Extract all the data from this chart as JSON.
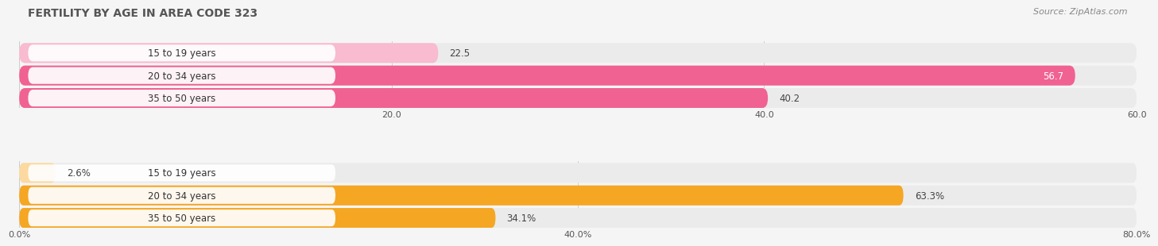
{
  "title": "FERTILITY BY AGE IN AREA CODE 323",
  "source": "Source: ZipAtlas.com",
  "title_fontsize": 10,
  "source_fontsize": 8,
  "bg_color": "#f5f5f5",
  "top_bars": {
    "labels": [
      "15 to 19 years",
      "20 to 34 years",
      "35 to 50 years"
    ],
    "values": [
      22.5,
      56.7,
      40.2
    ],
    "xlim": [
      0,
      60
    ],
    "xticks": [
      0,
      20.0,
      40.0,
      60.0
    ],
    "xtick_labels": [
      "",
      "20.0",
      "40.0",
      "60.0"
    ],
    "bar_color_strong": "#f06292",
    "bar_color_light": "#f8bbd0",
    "track_color": "#ebebeb",
    "value_inside_threshold": 0.85,
    "value_suffix": ""
  },
  "bottom_bars": {
    "labels": [
      "15 to 19 years",
      "20 to 34 years",
      "35 to 50 years"
    ],
    "values": [
      2.6,
      63.3,
      34.1
    ],
    "xlim": [
      0,
      80
    ],
    "xticks": [
      0,
      40.0,
      80.0
    ],
    "xtick_labels": [
      "0.0%",
      "40.0%",
      "80.0%"
    ],
    "bar_color_strong": "#f5a623",
    "bar_color_light": "#fcd9a0",
    "track_color": "#ebebeb",
    "value_inside_threshold": 0.85,
    "value_suffix": "%"
  }
}
